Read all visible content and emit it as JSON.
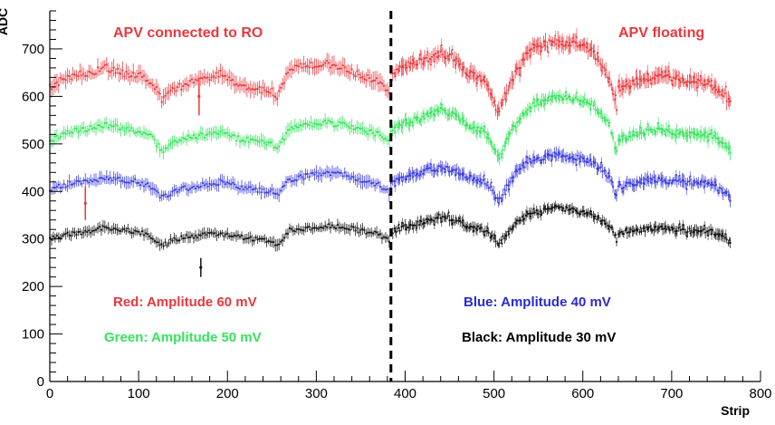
{
  "chart_data": {
    "type": "scatter",
    "title": "",
    "xlabel": "Strip",
    "ylabel": "ADC",
    "xlim": [
      0,
      800
    ],
    "ylim": [
      0,
      780
    ],
    "xticks": [
      0,
      100,
      200,
      300,
      400,
      500,
      600,
      700,
      800
    ],
    "yticks": [
      0,
      100,
      200,
      300,
      400,
      500,
      600,
      700
    ],
    "divider_x": 384,
    "annotations": {
      "left_region": "APV connected to RO",
      "right_region": "APV floating",
      "red": "Red: Amplitude 60 mV",
      "green": "Green: Amplitude 50 mV",
      "blue": "Blue: Amplitude 40 mV",
      "black": "Black: Amplitude 30 mV"
    },
    "series": [
      {
        "name": "Red: Amplitude 60 mV",
        "color": "#e8383d",
        "x": [
          0,
          20,
          40,
          64,
          80,
          100,
          115,
          127,
          140,
          160,
          180,
          192,
          210,
          230,
          250,
          256,
          270,
          290,
          310,
          330,
          350,
          370,
          383,
          384,
          400,
          420,
          440,
          455,
          470,
          490,
          505,
          512,
          525,
          540,
          555,
          570,
          590,
          610,
          630,
          639,
          640,
          660,
          680,
          700,
          720,
          740,
          760,
          766
        ],
        "values": [
          620,
          640,
          648,
          660,
          650,
          645,
          630,
          590,
          615,
          630,
          640,
          650,
          625,
          618,
          610,
          600,
          660,
          665,
          670,
          660,
          645,
          630,
          610,
          650,
          665,
          675,
          690,
          680,
          650,
          635,
          560,
          605,
          650,
          700,
          710,
          715,
          710,
          695,
          640,
          560,
          615,
          630,
          645,
          640,
          630,
          630,
          600,
          590
        ],
        "error": 18
      },
      {
        "name": "Green: Amplitude 50 mV",
        "color": "#35e35c",
        "x": [
          0,
          20,
          40,
          64,
          80,
          100,
          115,
          127,
          140,
          160,
          180,
          192,
          210,
          230,
          250,
          256,
          270,
          290,
          310,
          330,
          350,
          370,
          383,
          384,
          400,
          420,
          440,
          455,
          470,
          490,
          505,
          512,
          525,
          540,
          555,
          570,
          590,
          610,
          630,
          639,
          640,
          660,
          680,
          700,
          720,
          740,
          760,
          766
        ],
        "values": [
          505,
          525,
          530,
          540,
          535,
          525,
          515,
          480,
          505,
          515,
          520,
          525,
          512,
          505,
          500,
          490,
          530,
          540,
          545,
          540,
          530,
          520,
          500,
          530,
          545,
          555,
          570,
          560,
          540,
          525,
          470,
          500,
          545,
          580,
          590,
          600,
          595,
          585,
          540,
          475,
          510,
          520,
          530,
          525,
          520,
          520,
          500,
          485
        ],
        "error": 14
      },
      {
        "name": "Blue: Amplitude 40 mV",
        "color": "#3a3adf",
        "x": [
          0,
          20,
          40,
          64,
          80,
          100,
          115,
          127,
          140,
          160,
          180,
          192,
          210,
          230,
          250,
          256,
          270,
          290,
          310,
          330,
          350,
          370,
          383,
          384,
          400,
          420,
          440,
          455,
          470,
          490,
          505,
          512,
          525,
          540,
          555,
          570,
          590,
          610,
          630,
          639,
          640,
          660,
          680,
          700,
          720,
          740,
          760,
          766
        ],
        "values": [
          405,
          415,
          420,
          430,
          425,
          420,
          410,
          385,
          400,
          410,
          415,
          420,
          412,
          405,
          400,
          390,
          425,
          432,
          438,
          435,
          425,
          415,
          395,
          420,
          430,
          440,
          452,
          445,
          430,
          420,
          380,
          405,
          440,
          465,
          472,
          478,
          472,
          462,
          430,
          385,
          410,
          418,
          425,
          420,
          418,
          418,
          400,
          385
        ],
        "error": 14
      },
      {
        "name": "Black: Amplitude 30 mV",
        "color": "#111111",
        "x": [
          0,
          20,
          40,
          64,
          80,
          100,
          115,
          127,
          140,
          160,
          180,
          192,
          210,
          230,
          250,
          256,
          270,
          290,
          310,
          330,
          350,
          370,
          383,
          384,
          400,
          420,
          440,
          455,
          470,
          490,
          505,
          512,
          525,
          540,
          555,
          570,
          590,
          610,
          630,
          639,
          640,
          660,
          680,
          700,
          720,
          740,
          760,
          766
        ],
        "values": [
          300,
          310,
          315,
          325,
          320,
          315,
          305,
          285,
          300,
          305,
          310,
          312,
          305,
          300,
          295,
          285,
          318,
          322,
          328,
          325,
          318,
          310,
          295,
          315,
          325,
          335,
          348,
          340,
          328,
          318,
          290,
          305,
          335,
          352,
          358,
          365,
          360,
          350,
          330,
          290,
          312,
          318,
          322,
          320,
          318,
          318,
          305,
          290
        ],
        "error": 12
      }
    ],
    "outliers": [
      {
        "series": "Red: Amplitude 60 mV",
        "x": 40,
        "y": 375,
        "yerr": [
          340,
          410
        ]
      },
      {
        "series": "Red: Amplitude 60 mV",
        "x": 168,
        "y": 600,
        "yerr": [
          560,
          640
        ]
      },
      {
        "series": "Black: Amplitude 30 mV",
        "x": 170,
        "y": 240,
        "yerr": [
          220,
          260
        ]
      }
    ]
  }
}
